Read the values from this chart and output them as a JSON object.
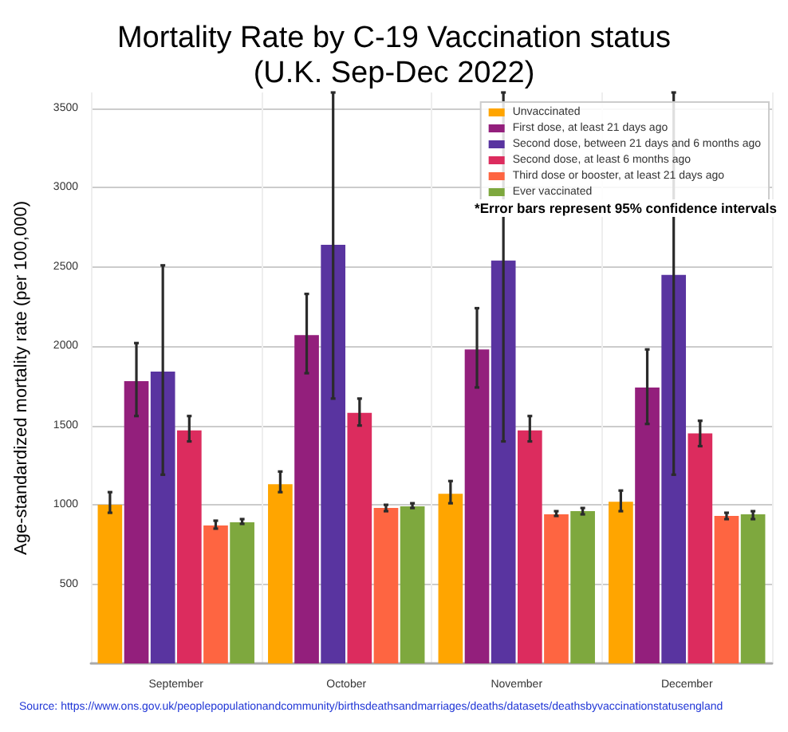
{
  "chart_data": {
    "type": "bar",
    "title": "Mortality Rate by C-19 Vaccination status\n(U.K. Sep-Dec 2022)",
    "ylabel": "Age-standardized mortality rate (per 100,000)",
    "categories": [
      "September",
      "October",
      "November",
      "December"
    ],
    "series": [
      {
        "name": "Unvaccinated",
        "color": "#ffa500",
        "values": [
          1000,
          1130,
          1070,
          1020
        ],
        "errors": [
          [
            950,
            1080
          ],
          [
            1080,
            1210
          ],
          [
            1010,
            1150
          ],
          [
            960,
            1090
          ]
        ]
      },
      {
        "name": "First dose, at least 21 days ago",
        "color": "#931f7c",
        "values": [
          1780,
          2070,
          1980,
          1740
        ],
        "errors": [
          [
            1560,
            2020
          ],
          [
            1830,
            2330
          ],
          [
            1740,
            2240
          ],
          [
            1510,
            1980
          ]
        ]
      },
      {
        "name": "Second dose, between 21 days and 6 months ago",
        "color": "#5934a0",
        "values": [
          1840,
          2640,
          2540,
          2450
        ],
        "errors": [
          [
            1190,
            2510
          ],
          [
            1670,
            3600
          ],
          [
            1400,
            3600
          ],
          [
            1190,
            3600
          ]
        ]
      },
      {
        "name": "Second dose, at least 6 months ago",
        "color": "#dc2c5e",
        "values": [
          1470,
          1580,
          1470,
          1450
        ],
        "errors": [
          [
            1400,
            1560
          ],
          [
            1500,
            1670
          ],
          [
            1400,
            1560
          ],
          [
            1370,
            1530
          ]
        ]
      },
      {
        "name": "Third dose or booster, at least 21 days ago",
        "color": "#fe6541",
        "values": [
          870,
          980,
          940,
          930
        ],
        "errors": [
          [
            850,
            900
          ],
          [
            960,
            1000
          ],
          [
            930,
            960
          ],
          [
            910,
            950
          ]
        ]
      },
      {
        "name": "Ever vaccinated",
        "color": "#7ea83e",
        "values": [
          890,
          990,
          960,
          940
        ],
        "errors": [
          [
            880,
            910
          ],
          [
            980,
            1010
          ],
          [
            940,
            980
          ],
          [
            910,
            960
          ]
        ]
      }
    ],
    "ylim": [
      0,
      3600
    ],
    "yticks": [
      500,
      1000,
      1500,
      2000,
      2500,
      3000,
      3500
    ],
    "grid": true,
    "legend": "top right",
    "annotations": [
      "*Error bars represent 95% confidence intervals",
      "Source: https://www.ons.gov.uk/peoplepopulationandcommunity/birthsdeathsandmarriages/deaths/datasets/deathsbyvaccinationstatusengland"
    ]
  }
}
